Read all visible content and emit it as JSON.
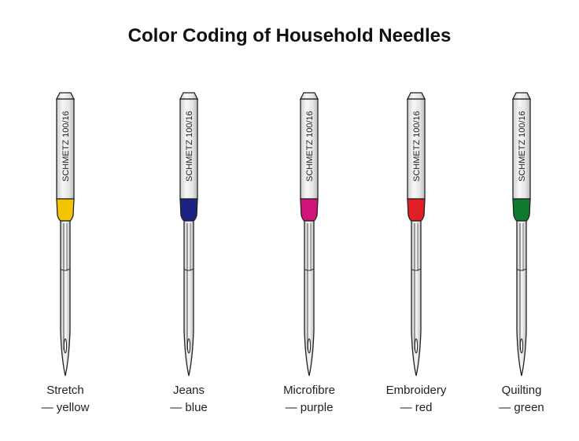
{
  "title": "Color Coding of Household Needles",
  "needles": [
    {
      "brand_text": "SCHMETZ 100/16",
      "color": "#f5c400",
      "name": "Stretch",
      "color_label": "— yellow"
    },
    {
      "brand_text": "SCHMETZ 100/16",
      "color": "#1a2380",
      "name": "Jeans",
      "color_label": "— blue"
    },
    {
      "brand_text": "SCHMETZ 100/16",
      "color": "#d0137a",
      "name": "Microfibre",
      "color_label": "— purple"
    },
    {
      "brand_text": "SCHMETZ 100/16",
      "color": "#e01e26",
      "name": "Embroidery",
      "color_label": "— red"
    },
    {
      "brand_text": "SCHMETZ 100/16",
      "color": "#0f7a2e",
      "name": "Quilting",
      "color_label": "— green"
    }
  ]
}
